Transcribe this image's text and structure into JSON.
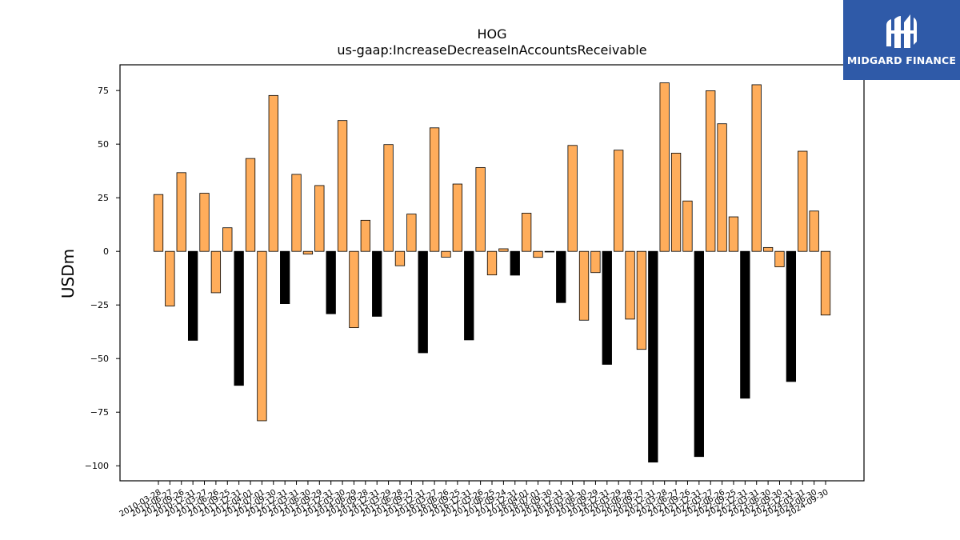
{
  "chart_data": {
    "type": "bar",
    "title": "HOG",
    "subtitle": "us-gaap:IncreaseDecreaseInAccountsReceivable",
    "xlabel": "",
    "ylabel": "USDm",
    "ylim": [
      -107,
      87
    ],
    "yticks": [
      -100,
      -75,
      -50,
      -25,
      0,
      25,
      50,
      75
    ],
    "grid": false,
    "colors": {
      "positive_q": "#ffad5b",
      "negative_annual": "#000000",
      "edge": "#000000"
    },
    "categories": [
      "2010-03-28",
      "2010-06-27",
      "2010-09-26",
      "2010-12-31",
      "2011-03-27",
      "2011-06-26",
      "2011-09-25",
      "2011-12-31",
      "2012-04-01",
      "2012-07-01",
      "2012-09-30",
      "2012-12-31",
      "2013-03-31",
      "2013-06-30",
      "2013-09-29",
      "2013-12-31",
      "2014-03-30",
      "2014-06-29",
      "2014-09-28",
      "2014-12-31",
      "2015-03-29",
      "2015-06-28",
      "2015-09-27",
      "2015-12-31",
      "2016-03-27",
      "2016-06-26",
      "2016-09-25",
      "2016-12-31",
      "2017-03-26",
      "2017-06-25",
      "2017-09-24",
      "2017-12-31",
      "2018-04-01",
      "2018-07-01",
      "2018-09-30",
      "2018-12-31",
      "2019-03-31",
      "2019-06-30",
      "2019-09-29",
      "2019-12-31",
      "2020-03-29",
      "2020-06-28",
      "2020-09-27",
      "2020-12-31",
      "2021-03-28",
      "2021-06-27",
      "2021-09-26",
      "2021-12-31",
      "2022-03-27",
      "2022-06-26",
      "2022-09-25",
      "2022-12-31",
      "2023-03-31",
      "2023-06-30",
      "2023-09-30",
      "2023-12-31",
      "2024-03-31",
      "2024-06-30",
      "2024-09-30"
    ],
    "values": [
      26.5,
      -25.5,
      36.7,
      -41.5,
      27.1,
      -19.3,
      11.0,
      -62.5,
      43.3,
      -79.0,
      72.7,
      -24.4,
      35.9,
      -1.3,
      30.7,
      -29.1,
      61.0,
      -35.6,
      14.5,
      -30.3,
      49.8,
      -6.7,
      17.4,
      -47.3,
      57.6,
      -2.7,
      31.4,
      -41.3,
      39.1,
      -11.0,
      1.2,
      -11.1,
      17.8,
      -2.8,
      -0.3,
      -23.9,
      49.4,
      -32.1,
      -9.9,
      -52.7,
      47.2,
      -31.6,
      -45.7,
      -98.3,
      78.6,
      45.8,
      23.5,
      -95.7,
      74.9,
      59.5,
      16.1,
      -68.5,
      77.7,
      1.8,
      -7.2,
      -60.7,
      46.7,
      18.8,
      -29.7
    ],
    "annual_flags": [
      false,
      false,
      false,
      true,
      false,
      false,
      false,
      true,
      false,
      false,
      false,
      true,
      false,
      false,
      false,
      true,
      false,
      false,
      false,
      true,
      false,
      false,
      false,
      true,
      false,
      false,
      false,
      true,
      false,
      false,
      false,
      true,
      false,
      false,
      false,
      true,
      false,
      false,
      false,
      true,
      false,
      false,
      false,
      true,
      false,
      false,
      false,
      true,
      false,
      false,
      false,
      true,
      false,
      false,
      false,
      true,
      false,
      false,
      false
    ]
  },
  "logo": {
    "text": "MIDGARD FINANCE"
  }
}
